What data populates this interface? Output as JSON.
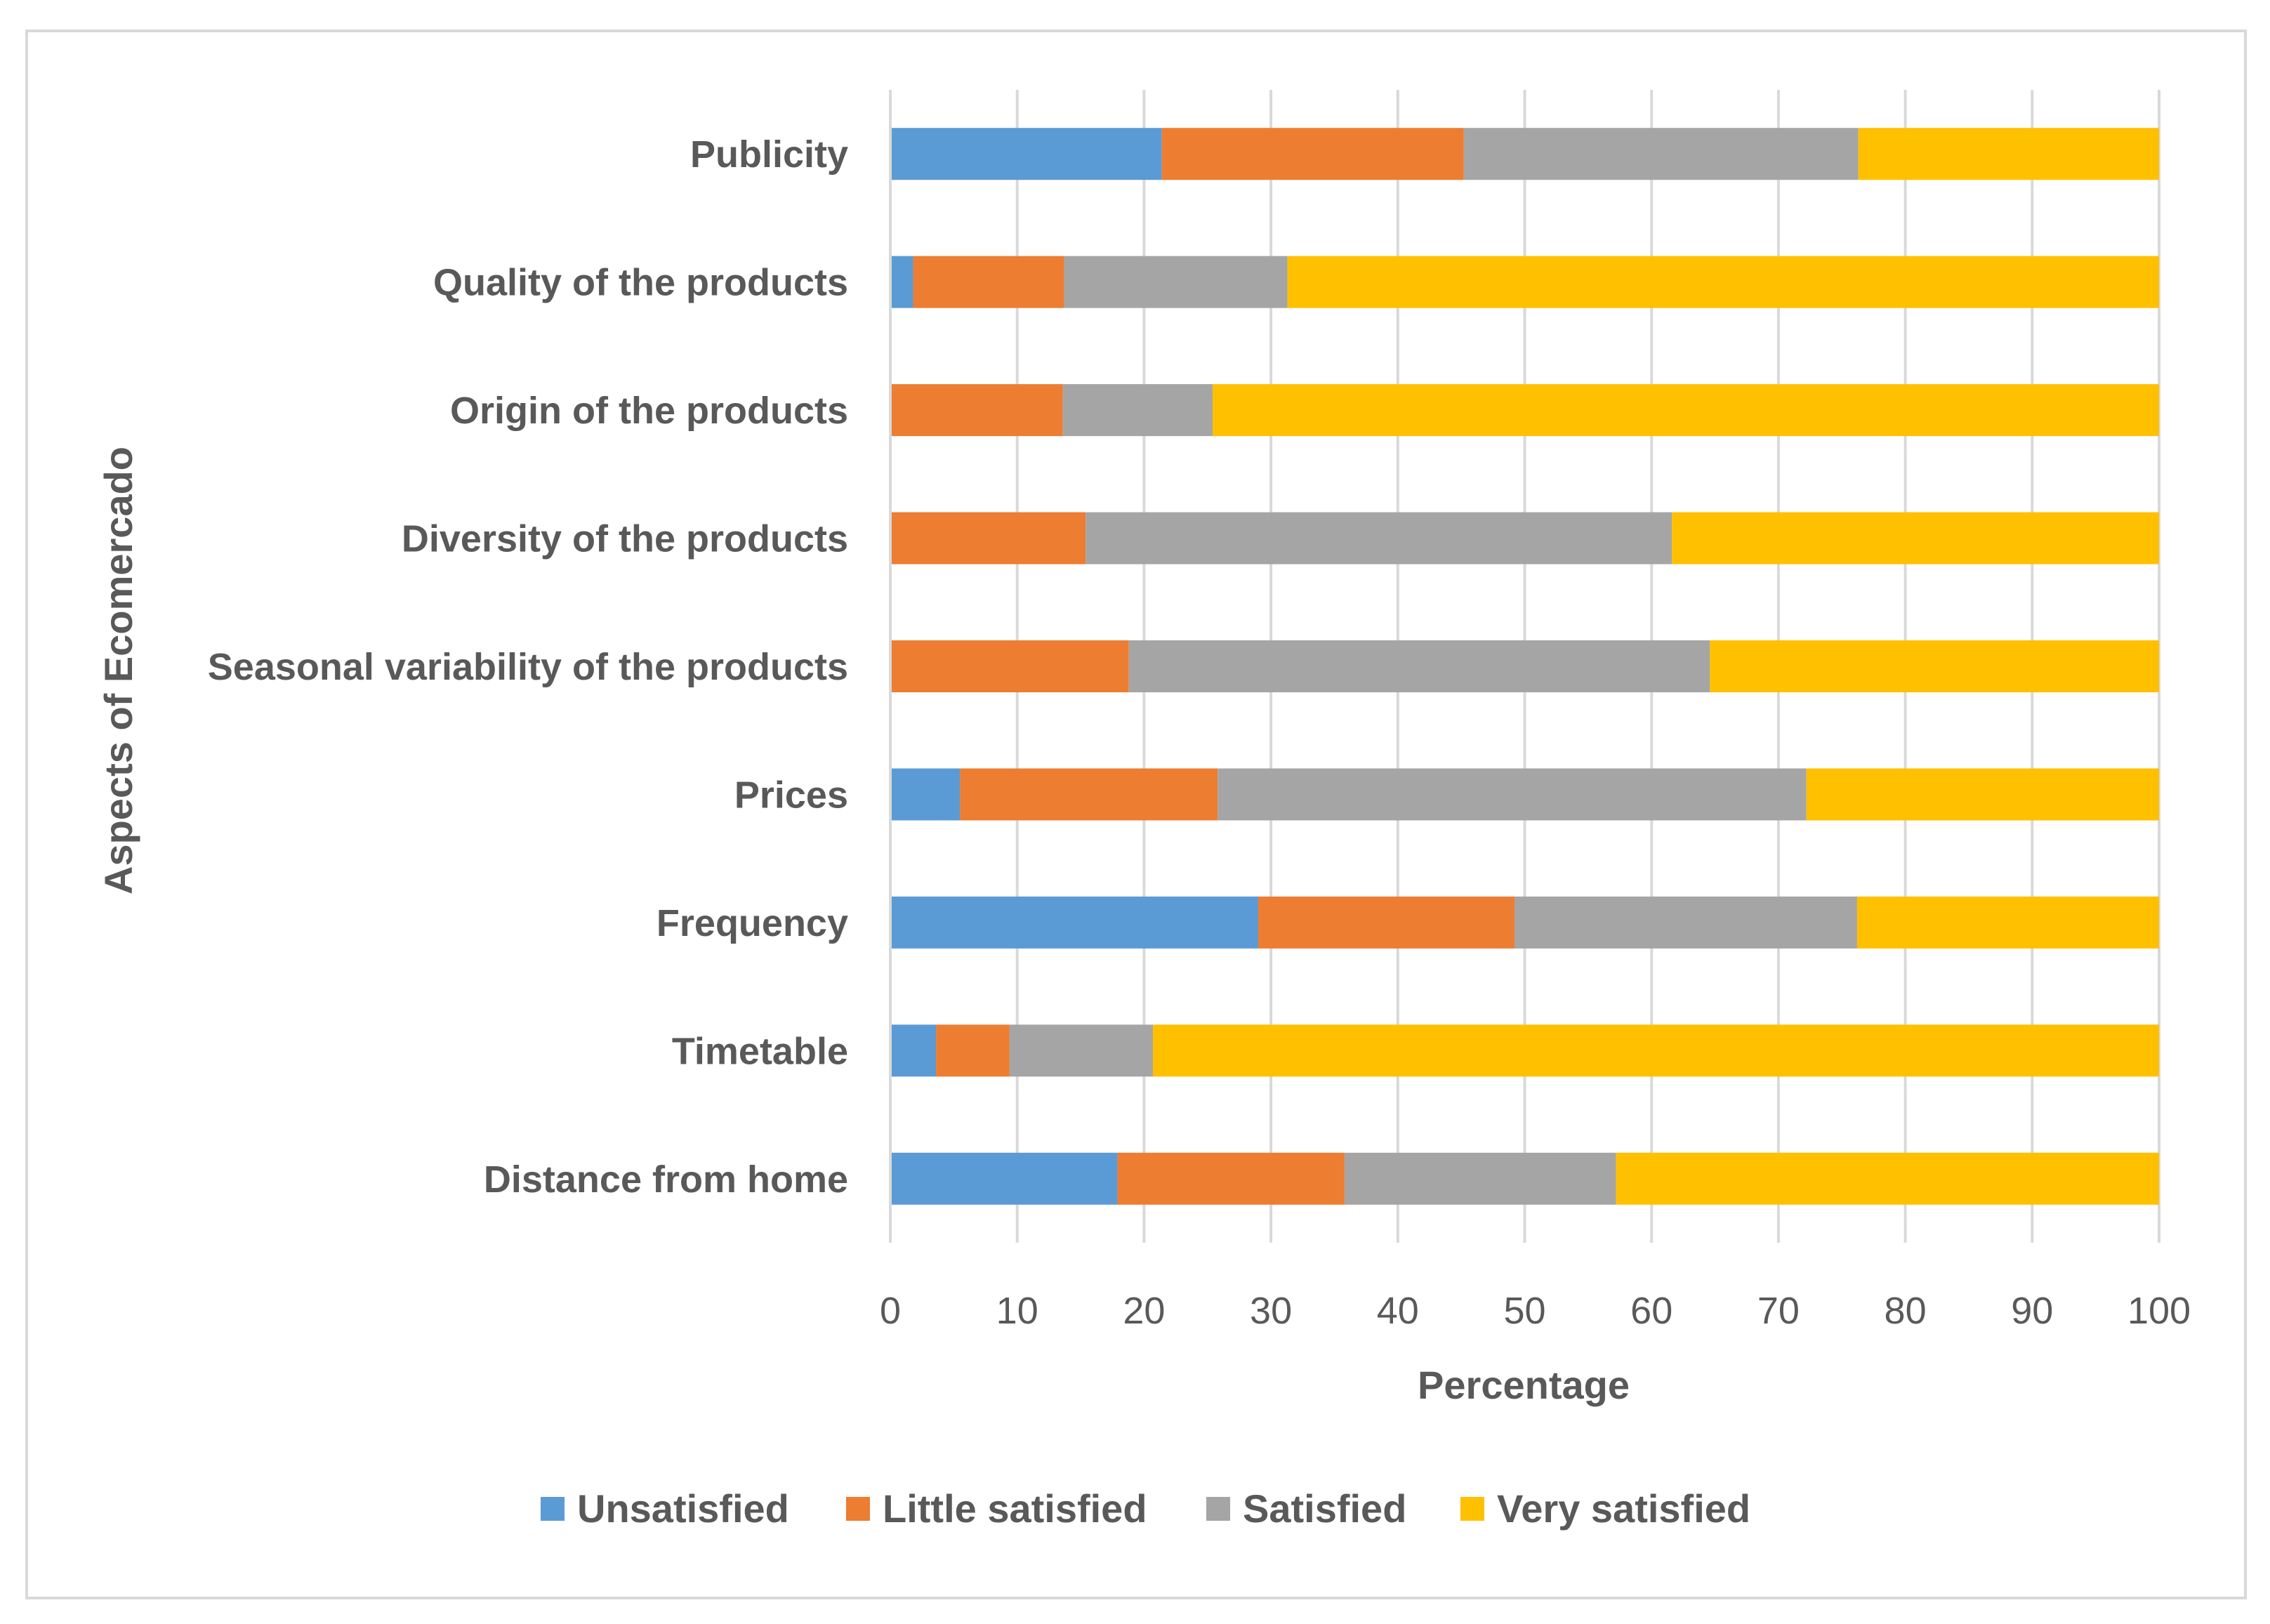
{
  "chart_data": {
    "type": "bar",
    "orientation": "horizontal",
    "stacked": true,
    "categories": [
      "Distance from home",
      "Timetable",
      "Frequency",
      "Prices",
      "Seasonal variability of the products",
      "Diversity of the products",
      "Origin of the products",
      "Quality of the products",
      "Publicity"
    ],
    "series": [
      {
        "name": "Unsatisfied",
        "color": "#5b9bd5",
        "values": [
          17.9,
          3.6,
          29.0,
          5.5,
          0,
          0,
          0,
          1.8,
          21.4
        ]
      },
      {
        "name": "Little satisfied",
        "color": "#ed7d31",
        "values": [
          17.9,
          5.8,
          20.2,
          20.3,
          18.8,
          15.4,
          13.6,
          11.9,
          23.8
        ]
      },
      {
        "name": "Satisfied",
        "color": "#a5a5a5",
        "values": [
          21.4,
          11.3,
          27.0,
          46.4,
          45.8,
          46.2,
          11.8,
          17.6,
          31.1
        ]
      },
      {
        "name": "Very satisfied",
        "color": "#ffc000",
        "values": [
          42.8,
          79.3,
          23.8,
          27.8,
          35.4,
          38.4,
          74.6,
          68.7,
          23.7
        ]
      }
    ],
    "xlabel": "Percentage",
    "ylabel": "Aspects of Ecomercado",
    "xlim": [
      0,
      100
    ],
    "xticks": [
      "0",
      "10",
      "20",
      "30",
      "40",
      "50",
      "60",
      "70",
      "80",
      "90",
      "100"
    ],
    "grid": "vertical",
    "legend": "bottom"
  }
}
